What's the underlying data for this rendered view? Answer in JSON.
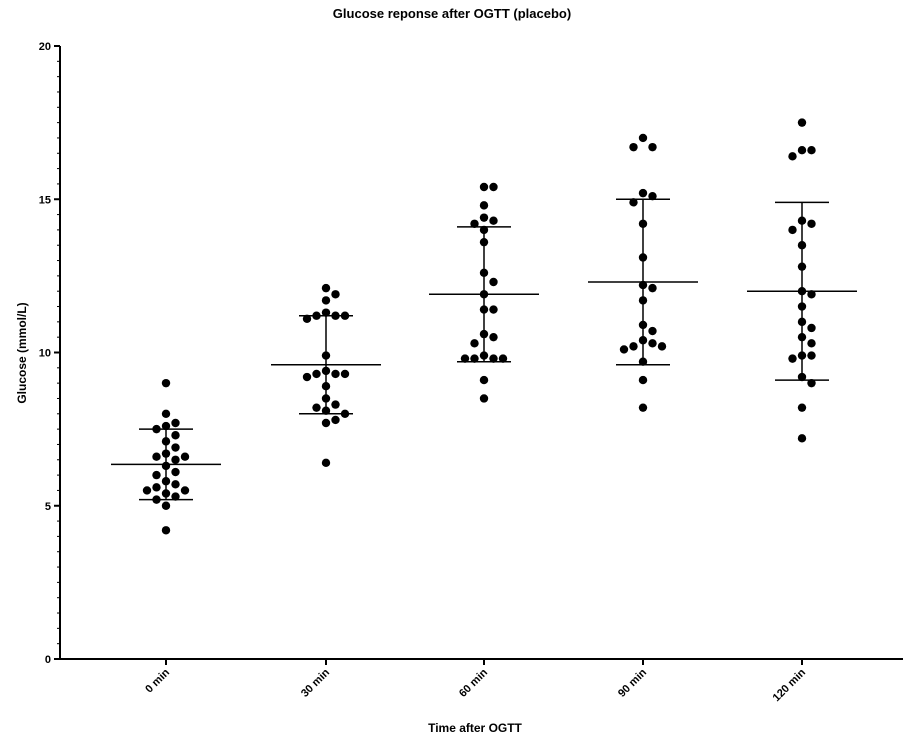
{
  "chart_data": {
    "type": "scatter",
    "title": "Glucose reponse after OGTT (placebo)",
    "xlabel": "Time after OGTT",
    "ylabel": "Glucose (mmol/L)",
    "ylim": [
      0,
      20
    ],
    "yticks": [
      "0",
      "5",
      "10",
      "15",
      "20"
    ],
    "categories": [
      "0 min",
      "30 min",
      "60 min",
      "90 min",
      "120 min"
    ],
    "grid": false,
    "groups": [
      {
        "category": "0 min",
        "mean": 6.35,
        "sd_upper": 7.5,
        "sd_lower": 5.2,
        "values": [
          9.0,
          8.0,
          7.7,
          7.6,
          7.5,
          7.3,
          7.1,
          6.9,
          6.7,
          6.6,
          6.6,
          6.5,
          6.3,
          6.1,
          6.0,
          5.8,
          5.7,
          5.6,
          5.5,
          5.5,
          5.4,
          5.3,
          5.2,
          5.0,
          4.2
        ]
      },
      {
        "category": "30 min",
        "mean": 9.6,
        "sd_upper": 11.2,
        "sd_lower": 8.0,
        "values": [
          12.1,
          11.9,
          11.7,
          11.3,
          11.2,
          11.2,
          11.2,
          11.1,
          9.9,
          9.4,
          9.3,
          9.3,
          9.3,
          9.2,
          8.9,
          8.5,
          8.3,
          8.2,
          8.1,
          8.0,
          7.8,
          7.7,
          6.4
        ]
      },
      {
        "category": "60 min",
        "mean": 11.9,
        "sd_upper": 14.1,
        "sd_lower": 9.7,
        "values": [
          15.4,
          15.4,
          14.8,
          14.4,
          14.3,
          14.2,
          14.0,
          13.6,
          12.6,
          12.3,
          11.9,
          11.4,
          11.4,
          10.6,
          10.5,
          10.3,
          9.9,
          9.8,
          9.8,
          9.8,
          9.8,
          9.1,
          8.5
        ]
      },
      {
        "category": "90 min",
        "mean": 12.3,
        "sd_upper": 15.0,
        "sd_lower": 9.6,
        "values": [
          17.0,
          16.7,
          16.7,
          15.2,
          15.1,
          14.9,
          14.2,
          13.1,
          12.2,
          12.1,
          11.7,
          10.9,
          10.7,
          10.4,
          10.3,
          10.2,
          10.2,
          10.1,
          9.7,
          9.1,
          8.2
        ]
      },
      {
        "category": "120 min",
        "mean": 12.0,
        "sd_upper": 14.9,
        "sd_lower": 9.1,
        "values": [
          17.5,
          16.6,
          16.6,
          16.4,
          14.3,
          14.2,
          14.0,
          13.5,
          12.8,
          12.0,
          11.9,
          11.5,
          11.0,
          10.8,
          10.5,
          10.3,
          9.9,
          9.9,
          9.8,
          9.2,
          9.0,
          8.2,
          7.2
        ]
      }
    ],
    "colors": {
      "points": "#000000",
      "axes": "#000000",
      "background": "#ffffff"
    }
  }
}
